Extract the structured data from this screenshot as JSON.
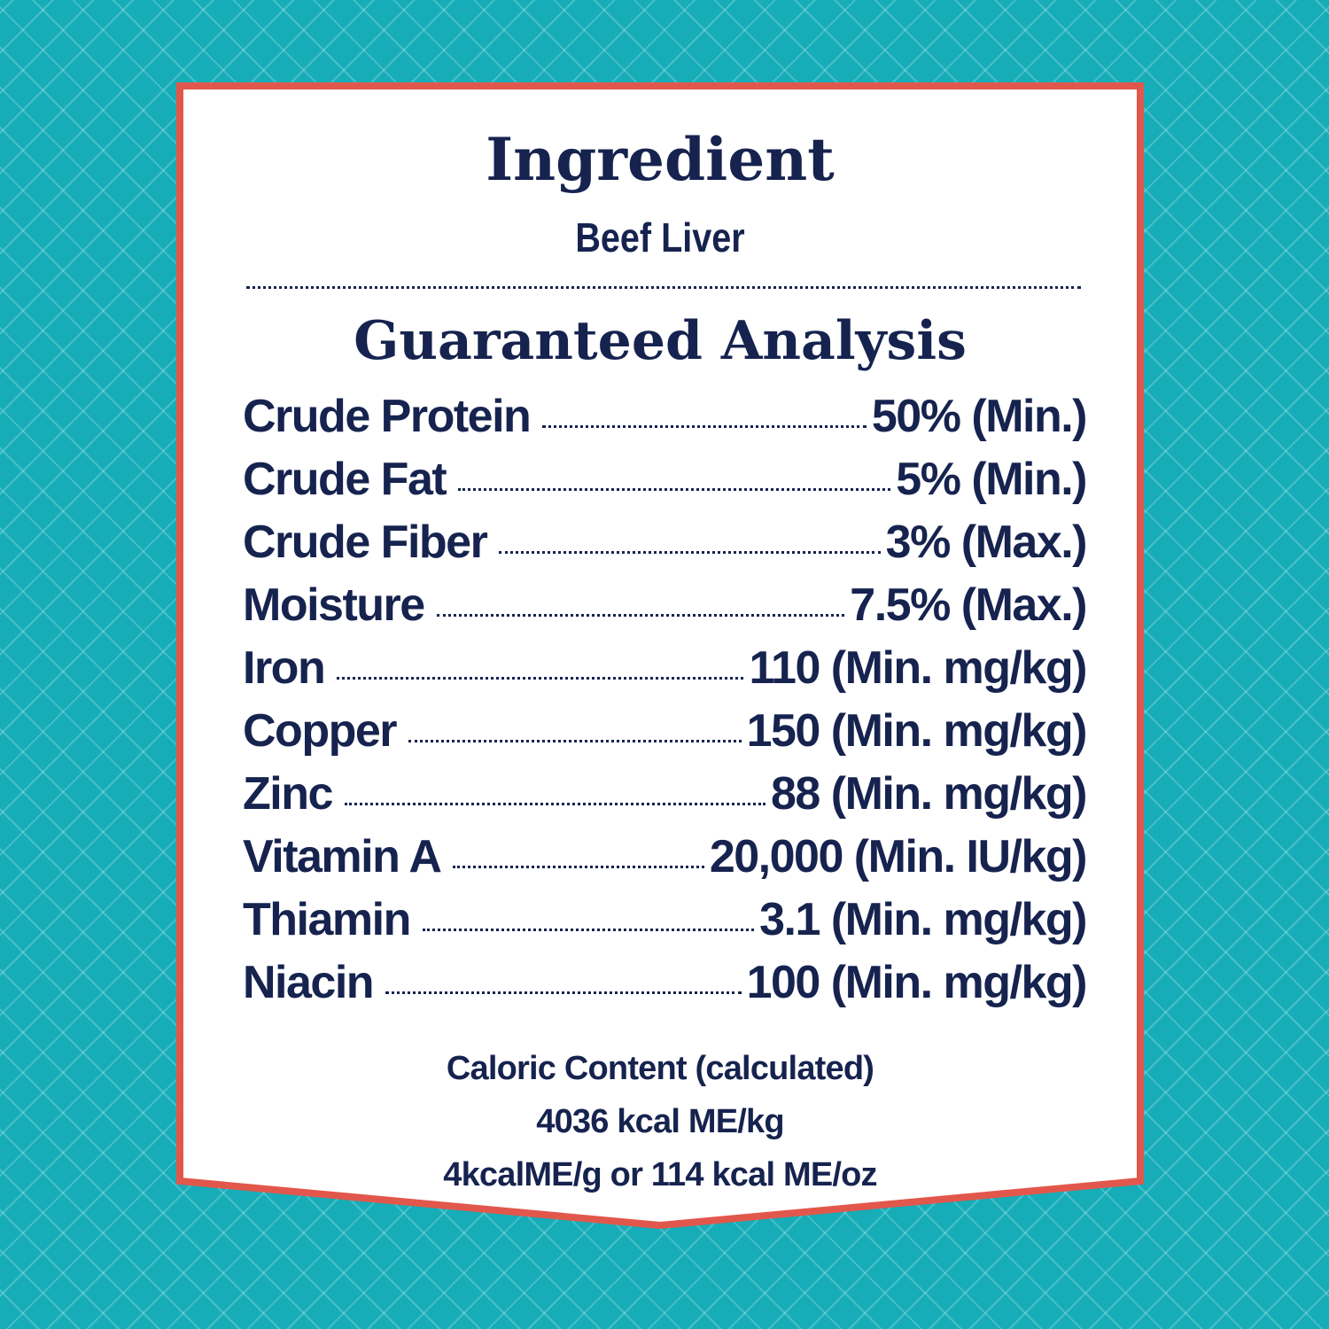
{
  "ingredient": {
    "heading": "Ingredient",
    "value": "Beef Liver"
  },
  "analysis": {
    "heading": "Guaranteed Analysis",
    "rows": [
      {
        "name": "Crude Protein",
        "amount": "50% (Min.)"
      },
      {
        "name": "Crude Fat",
        "amount": "5% (Min.)"
      },
      {
        "name": "Crude Fiber",
        "amount": "3% (Max.)"
      },
      {
        "name": "Moisture",
        "amount": "7.5% (Max.)"
      },
      {
        "name": "Iron",
        "amount": "110 (Min. mg/kg)"
      },
      {
        "name": "Copper",
        "amount": "150 (Min. mg/kg)"
      },
      {
        "name": "Zinc",
        "amount": "88 (Min. mg/kg)"
      },
      {
        "name": "Vitamin A",
        "amount": "20,000 (Min. IU/kg)"
      },
      {
        "name": "Thiamin",
        "amount": "3.1 (Min. mg/kg)"
      },
      {
        "name": "Niacin",
        "amount": "100 (Min. mg/kg)"
      }
    ]
  },
  "caloric": {
    "title": "Caloric Content (calculated)",
    "per_kg": "4036 kcal ME/kg",
    "per_g_oz": "4kcalME/g or 114 kcal ME/oz"
  },
  "colors": {
    "background": "#16adb8",
    "panel": "#ffffff",
    "border": "#e2574c",
    "text": "#16234f"
  }
}
